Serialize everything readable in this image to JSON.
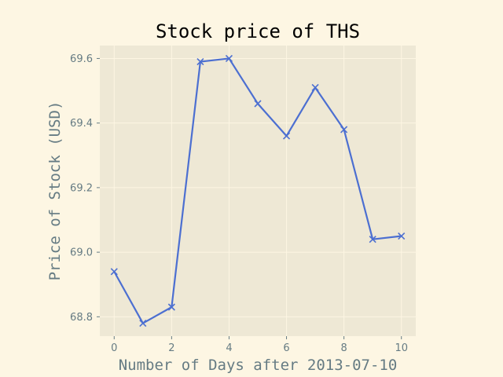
{
  "chart_data": {
    "type": "line",
    "title": "Stock price of THS",
    "xlabel": "Number of Days after 2013-07-10",
    "ylabel": "Price of Stock (USD)",
    "x": [
      0,
      1,
      2,
      3,
      4,
      5,
      6,
      7,
      8,
      9,
      10
    ],
    "series": [
      {
        "values": [
          68.94,
          68.78,
          68.83,
          69.59,
          69.6,
          69.46,
          69.36,
          69.51,
          69.38,
          69.04,
          69.05
        ],
        "color": "#4c6fd1",
        "marker": "x"
      }
    ],
    "xlim": [
      -0.5,
      10.5
    ],
    "ylim": [
      68.74,
      69.64
    ],
    "xticks": [
      0,
      2,
      4,
      6,
      8,
      10
    ],
    "yticks": [
      68.8,
      69.0,
      69.2,
      69.4,
      69.6
    ],
    "xtick_labels": [
      "0",
      "2",
      "4",
      "6",
      "8",
      "10"
    ],
    "ytick_labels": [
      "68.8",
      "69.0",
      "69.2",
      "69.4",
      "69.6"
    ],
    "grid": true,
    "colors": {
      "figure_background": "#fdf6e3",
      "plot_background": "#eee8d5",
      "grid": "#fdf6e3",
      "text": "#657b83"
    }
  }
}
